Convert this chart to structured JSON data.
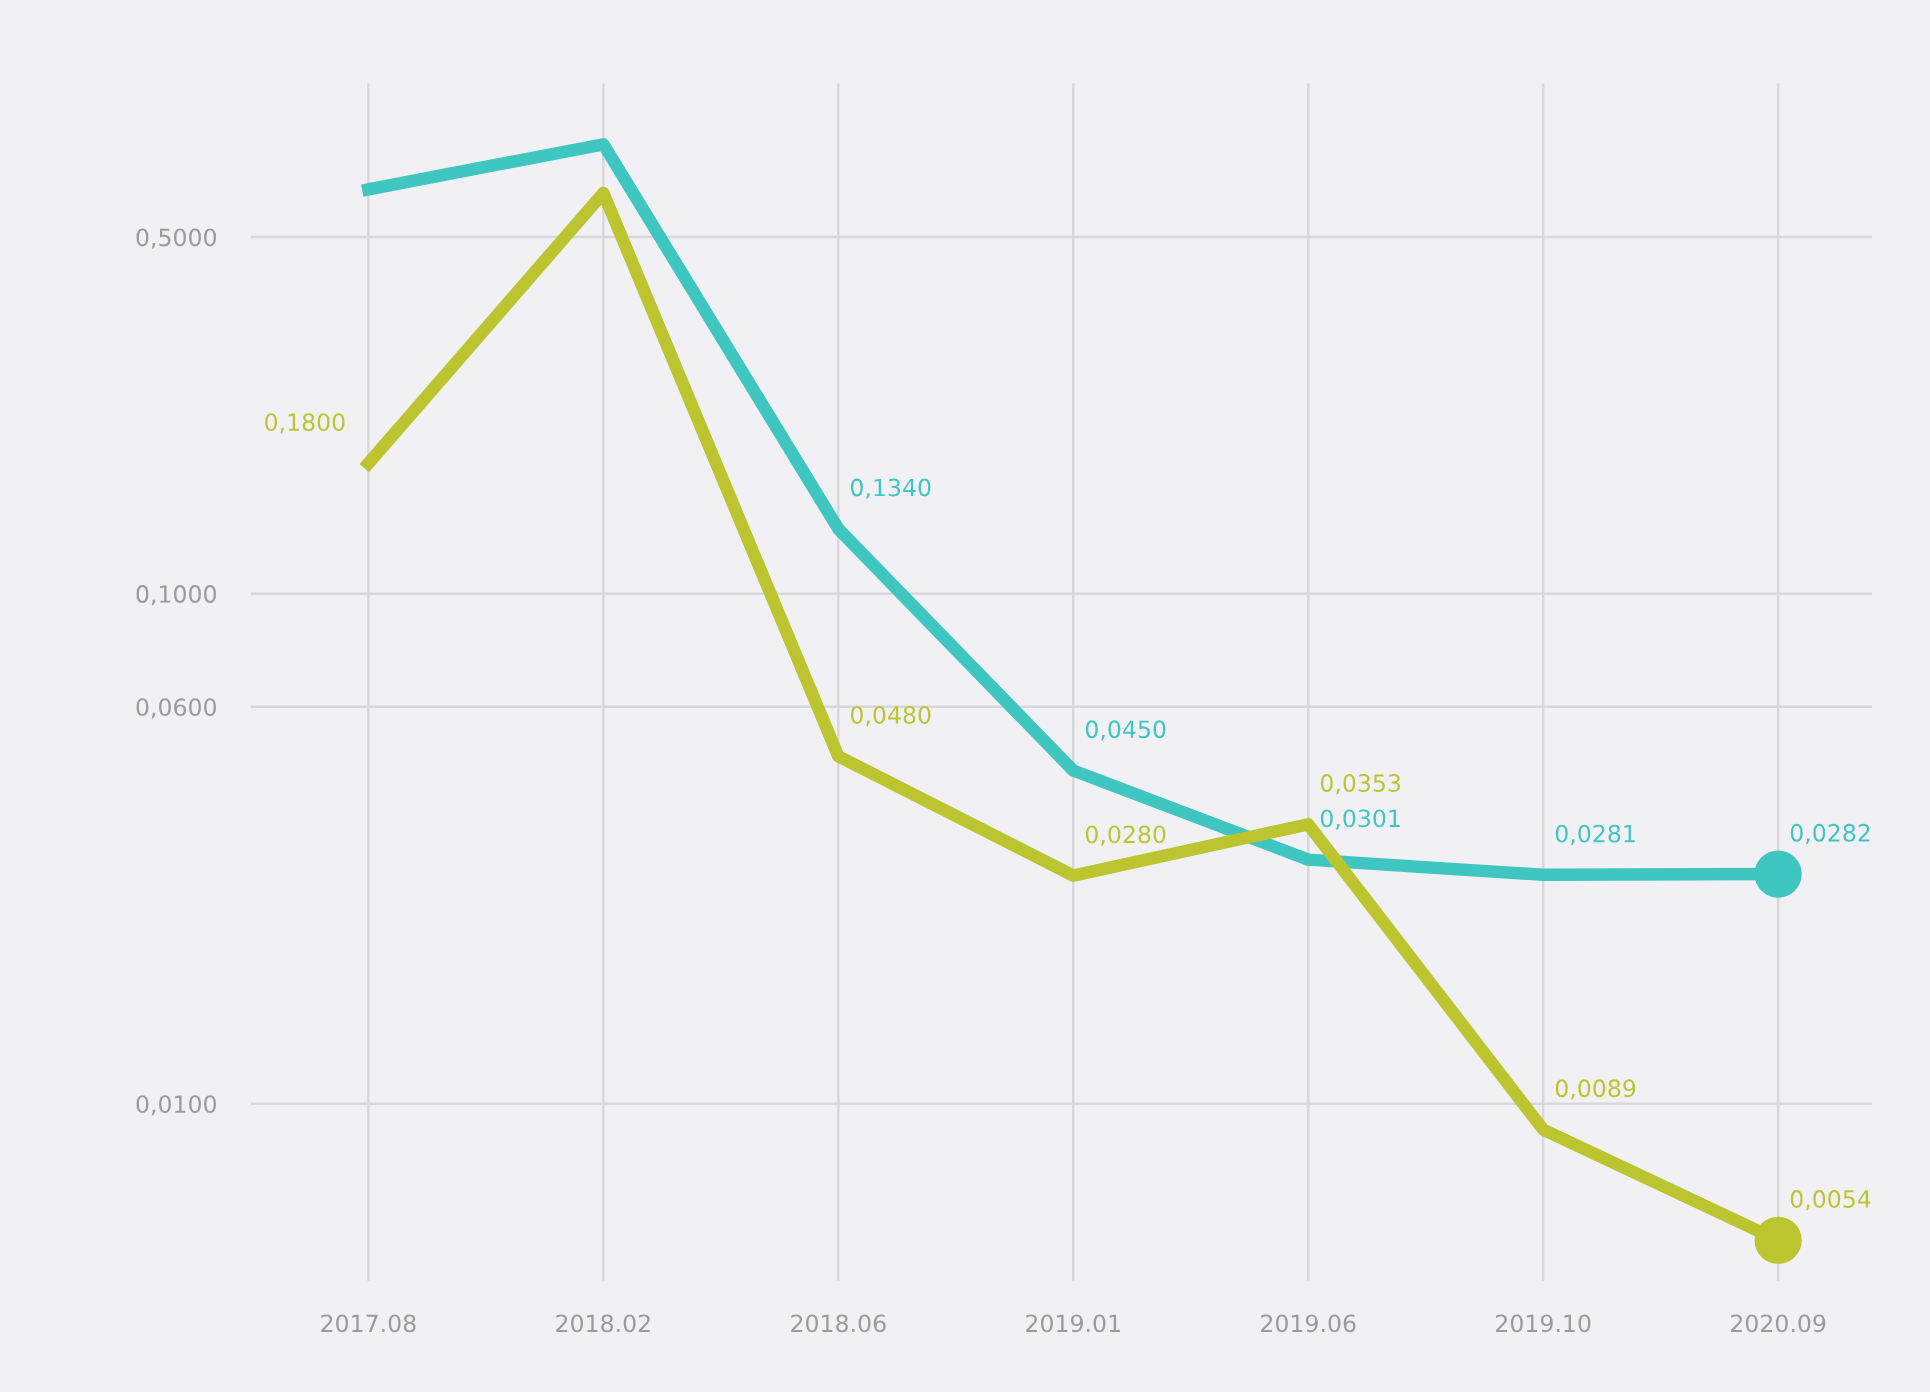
{
  "chart_data": {
    "type": "line",
    "categories": [
      "2017.08",
      "2018.02",
      "2018.06",
      "2019.01",
      "2019.06",
      "2019.10",
      "2020.09"
    ],
    "series": [
      {
        "color": "#3fc6c0",
        "values": [
          0.62,
          0.76,
          0.134,
          0.045,
          0.0301,
          0.0281,
          0.0282
        ],
        "value_labels": [
          null,
          null,
          "0,1340",
          "0,0450",
          "0,0301",
          "0,0281",
          "0,0282"
        ]
      },
      {
        "color": "#bcc530",
        "values": [
          0.18,
          0.61,
          0.048,
          0.028,
          0.0353,
          0.0089,
          0.0054
        ],
        "value_labels": [
          "0,1800",
          null,
          "0,0480",
          "0,0280",
          "0,0353",
          "0,0089",
          "0,0054"
        ]
      }
    ],
    "log": true,
    "ylim": [
      0.0045,
      1.0
    ],
    "yticks": [
      {
        "value": 0.5,
        "label": "0,5000"
      },
      {
        "value": 0.1,
        "label": "0,1000"
      },
      {
        "value": 0.06,
        "label": "0,0600"
      },
      {
        "value": 0.01,
        "label": "0,0100"
      }
    ],
    "grid": true,
    "legend": false,
    "line_style": "solid"
  }
}
